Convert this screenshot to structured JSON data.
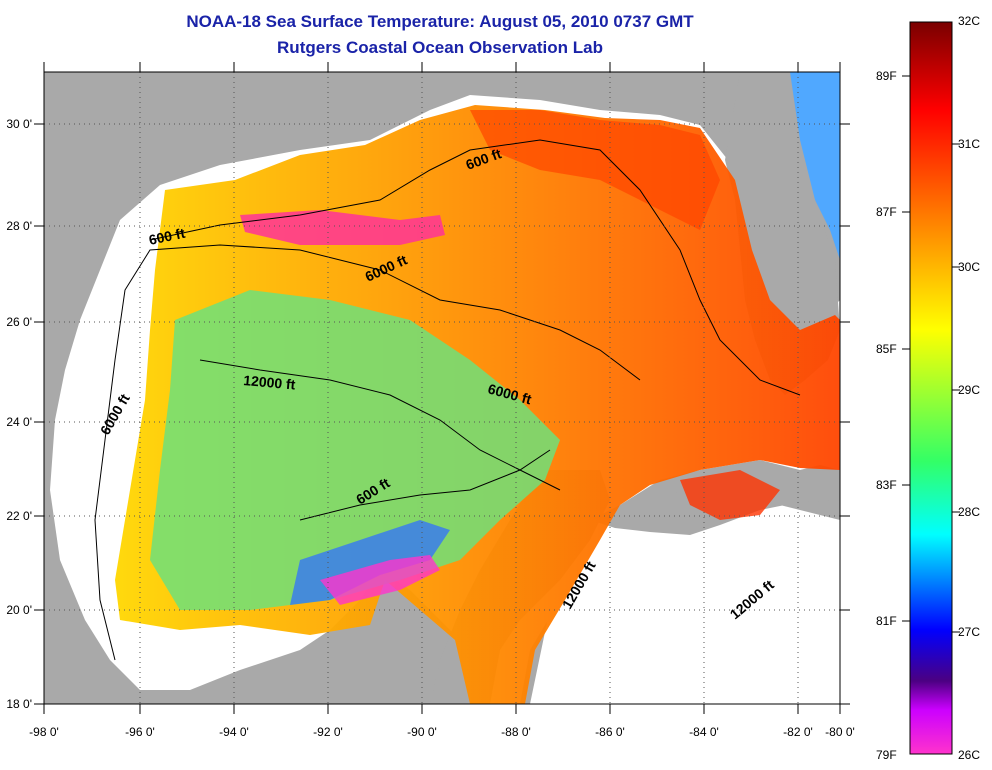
{
  "header": {
    "title": "NOAA-18 Sea Surface Temperature:  August 05, 2010 0737 GMT",
    "subtitle": "Rutgers Coastal Ocean Observation Lab"
  },
  "map": {
    "region": "Gulf of Mexico",
    "lon_range": [
      -98,
      -80
    ],
    "lat_range": [
      18,
      31
    ],
    "x_ticks": [
      "-98 0'",
      "-96 0'",
      "-94 0'",
      "-92 0'",
      "-90 0'",
      "-88 0'",
      "-86 0'",
      "-84 0'",
      "-82 0'",
      "-80 0'"
    ],
    "y_ticks": [
      "18 0'",
      "20 0'",
      "22 0'",
      "24 0'",
      "26 0'",
      "28 0'",
      "30 0'"
    ],
    "contour_labels": [
      "600 ft",
      "600 ft",
      "6000 ft",
      "6000 ft",
      "6000 ft",
      "12000 ft",
      "600 ft",
      "12000 ft",
      "12000 ft"
    ],
    "colors": {
      "land": "#a9a9a9",
      "no_data": "#ffffff",
      "contour": "#000000",
      "grid": "#555555"
    }
  },
  "colorbar": {
    "celsius": [
      "32C",
      "31C",
      "30C",
      "29C",
      "28C",
      "27C",
      "26C"
    ],
    "fahrenheit": [
      "89F",
      "87F",
      "85F",
      "83F",
      "81F",
      "79F"
    ],
    "gradient": [
      "#7a0000",
      "#ff0000",
      "#ff8000",
      "#ffff00",
      "#00ffff",
      "#0000ff",
      "#ff00ff"
    ]
  }
}
